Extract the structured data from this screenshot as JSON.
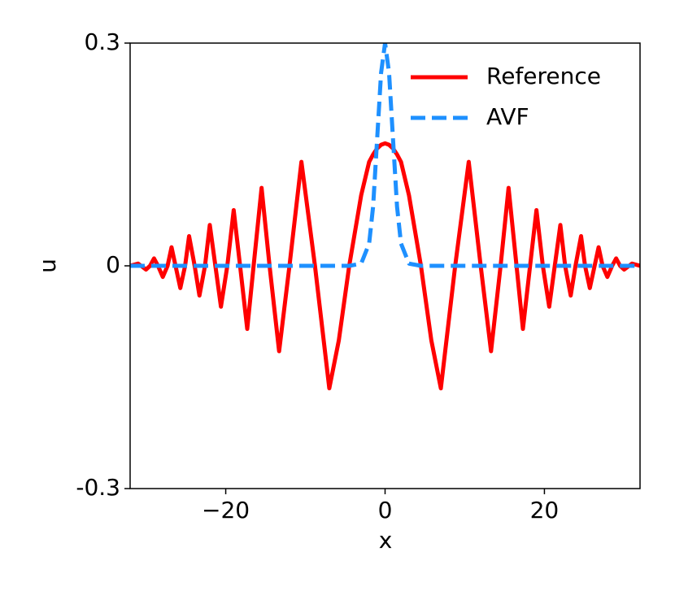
{
  "chart_data": {
    "type": "line",
    "xlabel": "x",
    "ylabel": "u",
    "x": [
      -32,
      -31,
      -30,
      -29.5,
      -29,
      -28.5,
      -27.9,
      -27.3,
      -26.8,
      -26.3,
      -25.7,
      -25.1,
      -24.6,
      -23.9,
      -23.3,
      -22.6,
      -22,
      -21.3,
      -20.6,
      -19.8,
      -19,
      -18.2,
      -17.3,
      -16.5,
      -15.5,
      -14.5,
      -13.3,
      -12,
      -10.5,
      -8.8,
      -7,
      -5.8,
      -4.5,
      -3,
      -2,
      -1.5,
      -1,
      -0.5,
      0,
      0.5,
      1,
      1.5,
      2,
      3,
      4.5,
      5.8,
      7,
      8.8,
      10.5,
      12,
      13.3,
      14.5,
      15.5,
      16.5,
      17.3,
      18.2,
      19,
      19.8,
      20.6,
      21.3,
      22,
      22.6,
      23.3,
      23.9,
      24.6,
      25.1,
      25.7,
      26.3,
      26.8,
      27.3,
      27.9,
      28.5,
      29,
      29.5,
      30,
      31,
      32
    ],
    "series": [
      {
        "name": "Reference",
        "color": "#ff0000",
        "style": "solid",
        "values": [
          0,
          0.003,
          -0.005,
          0,
          0.01,
          0,
          -0.015,
          0,
          0.025,
          0,
          -0.03,
          0,
          0.04,
          0,
          -0.04,
          0,
          0.055,
          0,
          -0.055,
          0,
          0.075,
          0,
          -0.085,
          0,
          0.105,
          0,
          -0.115,
          0,
          0.14,
          0,
          -0.165,
          -0.1,
          0,
          0.095,
          0.14,
          0.15,
          0.158,
          0.163,
          0.165,
          0.163,
          0.158,
          0.15,
          0.14,
          0.095,
          0,
          -0.1,
          -0.165,
          0,
          0.14,
          0,
          -0.115,
          0,
          0.105,
          0,
          -0.085,
          0,
          0.075,
          0,
          -0.055,
          0,
          0.055,
          0,
          -0.04,
          0,
          0.04,
          0,
          -0.03,
          0,
          0.025,
          0,
          -0.015,
          0,
          0.01,
          0,
          -0.005,
          0.003,
          0
        ]
      },
      {
        "name": "AVF",
        "color": "#1e90ff",
        "style": "dashed",
        "values": [
          0,
          0,
          0,
          0,
          0,
          0,
          0,
          0,
          0,
          0,
          0,
          0,
          0,
          0,
          0,
          0,
          0,
          0,
          0,
          0,
          0,
          0,
          0,
          0,
          0,
          0,
          0,
          0,
          0,
          0,
          0,
          0,
          0,
          0.003,
          0.03,
          0.08,
          0.17,
          0.26,
          0.3,
          0.26,
          0.17,
          0.08,
          0.03,
          0.003,
          0,
          0,
          0,
          0,
          0,
          0,
          0,
          0,
          0,
          0,
          0,
          0,
          0,
          0,
          0,
          0,
          0,
          0,
          0,
          0,
          0,
          0,
          0,
          0,
          0,
          0,
          0,
          0,
          0,
          0,
          0,
          0,
          0
        ]
      }
    ],
    "xlim": [
      -32,
      32
    ],
    "ylim": [
      -0.3,
      0.3
    ],
    "xticks": [
      {
        "value": -20,
        "label": "−20"
      },
      0,
      20
    ],
    "yticks": [
      -0.3,
      0,
      0.3
    ],
    "legend": "upper right",
    "grid": false
  }
}
